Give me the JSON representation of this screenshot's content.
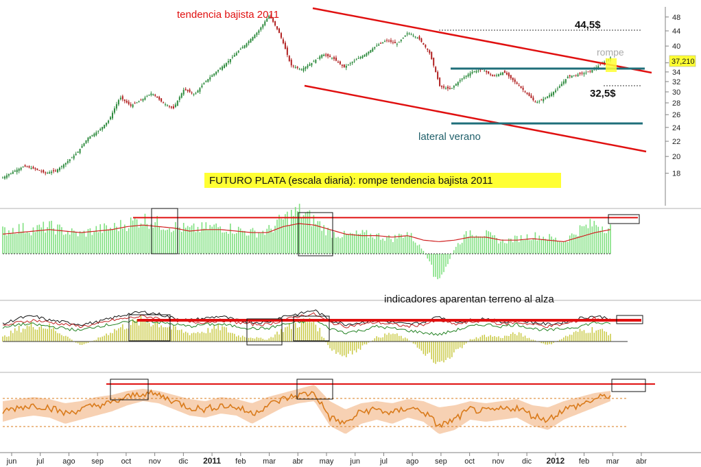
{
  "annotations": {
    "trend_label": "tendencia bajista 2011",
    "target_high": "44,5$",
    "target_low": "32,5$",
    "break_label": "rompe",
    "lateral_label": "lateral verano",
    "title": "FUTURO PLATA (escala diaria): rompe tendencia bajista 2011",
    "indicators_label": "indicadores aparentan terreno al alza",
    "last_price": "37,210"
  },
  "colors": {
    "up_candle": "#2e8b3e",
    "down_candle": "#b02020",
    "trendline": "#e01010",
    "lateral_line": "#1f6f7a",
    "title_bg": "#ffff33",
    "volume_bar": "#7fe07f",
    "ma_line": "#d02020",
    "osc_bar": "#c8c840",
    "orange_line": "#d97a1a",
    "orange_band": "#f6c9a6"
  },
  "chart_data": [
    {
      "type": "candlestick",
      "title": "FUTURO PLATA (escala diaria): rompe tendencia bajista 2011",
      "y_ticks": [
        "48",
        "44",
        "40",
        "36",
        "34",
        "32",
        "30",
        "28",
        "26",
        "24",
        "22",
        "20",
        "18"
      ],
      "ylim": [
        16,
        49
      ],
      "y_scale": "log",
      "x_ticks": [
        "jun",
        "jul",
        "ago",
        "sep",
        "oct",
        "nov",
        "dic",
        "2011",
        "feb",
        "mar",
        "abr",
        "may",
        "jun",
        "jul",
        "ago",
        "sep",
        "oct",
        "nov",
        "dic",
        "2012",
        "feb",
        "mar",
        "abr"
      ],
      "last_value": 37.21,
      "levels": [
        44.5,
        36,
        32.5,
        26
      ],
      "series": [
        {
          "values": [
            17.5,
            18.2,
            18.8,
            18.5,
            18.0,
            18.3,
            19.3,
            20.5,
            22.5,
            23.5,
            25.2,
            29.0,
            27.5,
            28.5,
            29.8,
            28.0,
            27.0,
            30.5,
            29.5,
            32.0,
            34.0,
            36.0,
            38.5,
            41.0,
            44.0,
            48.5,
            43.0,
            35.5,
            34.5,
            36.0,
            38.0,
            37.0,
            35.0,
            36.5,
            38.0,
            40.0,
            41.5,
            40.5,
            43.5,
            42.0,
            38.5,
            31.0,
            30.5,
            32.5,
            34.0,
            34.5,
            33.0,
            34.0,
            32.0,
            30.0,
            28.0,
            29.0,
            30.5,
            33.0,
            33.5,
            34.0,
            35.5,
            37.2
          ]
        }
      ]
    },
    {
      "type": "bar",
      "panel": "volume",
      "values": [
        1.5,
        1.7,
        1.6,
        1.8,
        1.5,
        1.3,
        1.6,
        1.7,
        2.0,
        2.3,
        2.0,
        1.8,
        1.6,
        1.7,
        1.8,
        1.6,
        1.4,
        1.5,
        2.3,
        2.8,
        2.2,
        1.4,
        1.2,
        1.3,
        1.2,
        1.0,
        1.4,
        0.2,
        -2.0,
        0.4,
        1.5,
        1.3,
        0.8,
        1.0,
        1.2,
        1.1,
        0.8,
        1.6,
        2.0,
        1.7
      ],
      "ma": [
        1.3,
        1.4,
        1.5,
        1.6,
        1.5,
        1.4,
        1.5,
        1.6,
        1.8,
        1.9,
        1.8,
        1.7,
        1.5,
        1.6,
        1.6,
        1.5,
        1.4,
        1.4,
        1.8,
        2.0,
        1.9,
        1.6,
        1.3,
        1.2,
        1.2,
        1.1,
        1.2,
        0.9,
        0.8,
        0.9,
        1.1,
        1.1,
        0.9,
        0.9,
        1.0,
        0.9,
        0.8,
        1.1,
        1.4,
        1.6
      ],
      "resistance": 2.8
    },
    {
      "type": "line",
      "panel": "oscillators",
      "bars": [
        0.2,
        0.6,
        0.8,
        0.7,
        0.3,
        -0.2,
        0.1,
        0.5,
        0.8,
        1.0,
        0.9,
        0.6,
        0.4,
        0.5,
        0.7,
        0.3,
        0.2,
        0.1,
        0.6,
        0.9,
        1.0,
        -0.4,
        -0.8,
        -0.3,
        0.2,
        0.4,
        0.1,
        -0.5,
        -1.0,
        -0.6,
        0.1,
        0.3,
        0.2,
        0.4,
        0.1,
        -0.2,
        0.2,
        0.5,
        0.6,
        0.4
      ],
      "series": [
        {
          "values": [
            0.5,
            0.8,
            0.9,
            0.7,
            0.6,
            0.5,
            0.6,
            0.8,
            1.0,
            1.1,
            1.0,
            0.8,
            0.7,
            0.8,
            0.9,
            0.7,
            0.6,
            0.6,
            0.9,
            1.0,
            1.2,
            0.7,
            0.5,
            0.6,
            0.7,
            0.6,
            0.5,
            0.6,
            0.9,
            0.6,
            0.7,
            0.8,
            0.6,
            0.7,
            0.6,
            0.5,
            0.6,
            0.8,
            0.9,
            0.8
          ]
        },
        {
          "values": [
            0.4,
            0.6,
            0.7,
            0.6,
            0.5,
            0.4,
            0.5,
            0.7,
            0.8,
            0.9,
            0.8,
            0.7,
            0.6,
            0.6,
            0.7,
            0.6,
            0.5,
            0.5,
            0.7,
            0.9,
            1.0,
            0.6,
            0.4,
            0.5,
            0.6,
            0.5,
            0.4,
            0.5,
            0.7,
            0.5,
            0.6,
            0.7,
            0.5,
            0.6,
            0.5,
            0.4,
            0.5,
            0.7,
            0.8,
            0.7
          ]
        },
        {
          "values": [
            0.3,
            0.5,
            0.5,
            0.4,
            0.3,
            0.2,
            0.4,
            0.5,
            0.6,
            0.7,
            0.6,
            0.5,
            0.4,
            0.5,
            0.5,
            0.4,
            0.3,
            0.3,
            0.5,
            0.6,
            0.7,
            0.3,
            0.1,
            0.2,
            0.4,
            0.3,
            0.2,
            0.1,
            0.0,
            0.2,
            0.4,
            0.5,
            0.4,
            0.5,
            0.3,
            0.2,
            0.3,
            0.4,
            0.6,
            0.5
          ]
        }
      ],
      "resistance": 1.0
    },
    {
      "type": "area",
      "panel": "relative_strength",
      "line": [
        0.1,
        0.3,
        0.4,
        0.3,
        0.0,
        0.2,
        0.4,
        0.5,
        0.8,
        1.0,
        0.9,
        0.6,
        0.3,
        0.2,
        0.4,
        0.3,
        0.0,
        0.4,
        0.7,
        0.9,
        1.0,
        -0.2,
        -0.5,
        0.1,
        0.2,
        0.0,
        0.3,
        0.1,
        -0.6,
        -0.3,
        0.2,
        0.1,
        0.2,
        0.3,
        -0.1,
        -0.3,
        0.2,
        0.4,
        0.7,
        0.9
      ],
      "band_upper": [
        0.6,
        0.7,
        0.8,
        0.7,
        0.5,
        0.6,
        0.8,
        0.9,
        1.1,
        1.2,
        1.1,
        0.9,
        0.7,
        0.6,
        0.8,
        0.7,
        0.5,
        0.8,
        1.0,
        1.2,
        1.4,
        0.6,
        0.2,
        0.5,
        0.6,
        0.5,
        0.7,
        0.6,
        0.3,
        0.4,
        0.6,
        0.5,
        0.6,
        0.7,
        0.4,
        0.3,
        0.6,
        0.8,
        1.0,
        1.1
      ],
      "band_lower": [
        -0.4,
        -0.2,
        -0.1,
        -0.2,
        -0.5,
        -0.3,
        -0.1,
        0.1,
        0.4,
        0.6,
        0.5,
        0.2,
        -0.1,
        -0.2,
        0.0,
        -0.1,
        -0.5,
        -0.1,
        0.3,
        0.5,
        0.6,
        -0.6,
        -1.0,
        -0.5,
        -0.3,
        -0.5,
        -0.2,
        -0.4,
        -1.0,
        -0.8,
        -0.3,
        -0.4,
        -0.3,
        -0.2,
        -0.6,
        -0.8,
        -0.3,
        0.0,
        0.3,
        0.6
      ],
      "resistance": 1.1
    }
  ]
}
